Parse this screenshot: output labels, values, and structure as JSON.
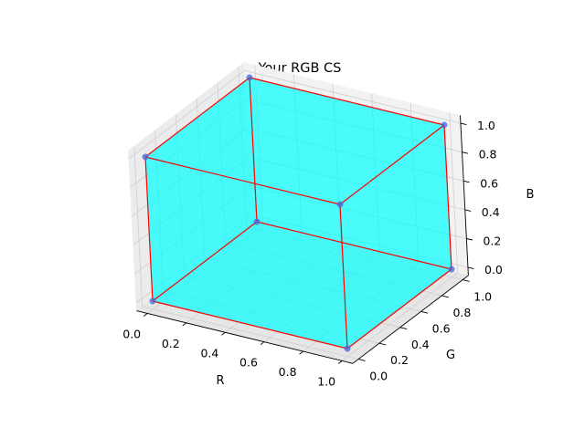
{
  "chart_data": {
    "type": "scatter",
    "projection": "3d",
    "title": "Your RGB CS",
    "xlabel": "R",
    "ylabel": "G",
    "zlabel": "B",
    "xlim": [
      0,
      1
    ],
    "ylim": [
      0,
      1
    ],
    "zlim": [
      0,
      1
    ],
    "xticks": [
      "0.0",
      "0.2",
      "0.4",
      "0.6",
      "0.8",
      "1.0"
    ],
    "yticks": [
      "0.0",
      "0.2",
      "0.4",
      "0.6",
      "0.8",
      "1.0"
    ],
    "zticks": [
      "0.0",
      "0.2",
      "0.4",
      "0.6",
      "0.8",
      "1.0"
    ],
    "grid": true,
    "points": [
      {
        "x": 0,
        "y": 0,
        "z": 0
      },
      {
        "x": 1,
        "y": 0,
        "z": 0
      },
      {
        "x": 0,
        "y": 1,
        "z": 0
      },
      {
        "x": 1,
        "y": 1,
        "z": 0
      },
      {
        "x": 0,
        "y": 0,
        "z": 1
      },
      {
        "x": 1,
        "y": 0,
        "z": 1
      },
      {
        "x": 0,
        "y": 1,
        "z": 1
      },
      {
        "x": 1,
        "y": 1,
        "z": 1
      }
    ],
    "edges": [
      [
        0,
        1
      ],
      [
        0,
        2
      ],
      [
        1,
        3
      ],
      [
        2,
        3
      ],
      [
        4,
        5
      ],
      [
        4,
        6
      ],
      [
        5,
        7
      ],
      [
        6,
        7
      ],
      [
        0,
        4
      ],
      [
        1,
        5
      ],
      [
        2,
        6
      ],
      [
        3,
        7
      ]
    ],
    "colors": {
      "face": "#00ffff",
      "edge": "#ff0000",
      "point": "#4169e1"
    }
  }
}
